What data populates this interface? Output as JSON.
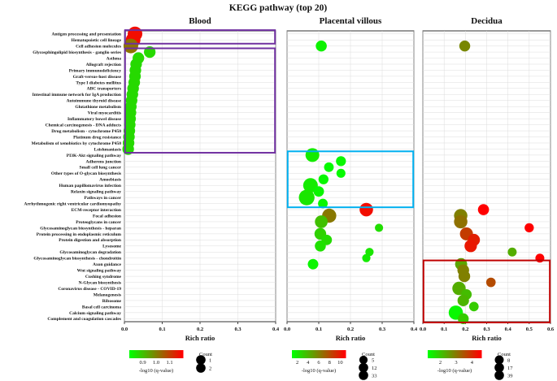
{
  "chart_data": {
    "type": "scatter",
    "title": "KEGG pathway (top 20)",
    "xlabel": "Rich ratio",
    "ylabel": "",
    "terms": [
      "Antigen processing and presentation",
      "Hematopoietic cell lineage",
      "Cell adhesion molecules",
      "Glycosphingolipid biosynthesis - ganglio series",
      "Asthma",
      "Allograft rejection",
      "Primary immunodeficiency",
      "Graft-versus-host disease",
      "Type I diabetes mellitus",
      "ABC transporters",
      "Intestinal immune network for IgA production",
      "Autoimmune thyroid disease",
      "Glutathione metabolism",
      "Viral myocarditis",
      "Inflammatory bowel disease",
      "Chemical carcinogenesis - DNA adducts",
      "Drug metabolism - cytochrome P450",
      "Platinum drug resistance",
      "Metabolism of xenobiotics by cytochrome P450",
      "Leishmaniasis",
      "PI3K-Akt signaling pathway",
      "Adherens junction",
      "Small cell lung cancer",
      "Other types of O-glycan biosynthesis",
      "Amoebiasis",
      "Human papillomavirus infection",
      "Relaxin signaling pathway",
      "Pathways in cancer",
      "Arrhythmogenic right ventricular cardiomyopathy",
      "ECM-receptor interaction",
      "Focal adhesion",
      "Proteoglycans in cancer",
      "Glycosaminoglycan biosynthesis - heparan",
      "Protein processing in endoplasmic reticulum",
      "Protein digestion and absorption",
      "Lysosome",
      "Glycosaminoglycan degradation",
      "Glycosaminoglycan biosynthesis - chondroitin",
      "Axon guidance",
      "Wnt signaling pathway",
      "Cushing syndrome",
      "N-Glycan biosynthesis",
      "Coronavirus disease - COVID-19",
      "Melanogenesis",
      "Ribosome",
      "Basal cell carcinoma",
      "Calcium signaling pathway",
      "Complement and coagulation cascades"
    ],
    "panels": [
      {
        "name": "Blood",
        "xlim": [
          0,
          0.4
        ],
        "xticks": [
          "0.0",
          "0.1",
          "0.2",
          "0.3",
          "0.4"
        ],
        "colorbar": {
          "min": 0.8,
          "max": 1.2,
          "ticks": [
            "0.9",
            "1.0",
            "1.1"
          ],
          "label": "-log10 (q-value)"
        },
        "size_legend": {
          "title": "Count",
          "values": [
            1,
            2
          ],
          "labels": [
            "1",
            "2"
          ]
        },
        "points": [
          {
            "term": "Antigen processing and presentation",
            "x": 0.028,
            "count": 2,
            "q": 1.18
          },
          {
            "term": "Hematopoietic cell lineage",
            "x": 0.023,
            "count": 2,
            "q": 1.18
          },
          {
            "term": "Cell adhesion molecules",
            "x": 0.017,
            "count": 2,
            "q": 1.02
          },
          {
            "term": "Glycosphingolipid biosynthesis - ganglio series",
            "x": 0.067,
            "count": 1,
            "q": 0.86
          },
          {
            "term": "Asthma",
            "x": 0.037,
            "count": 1,
            "q": 0.86
          },
          {
            "term": "Allograft rejection",
            "x": 0.031,
            "count": 1,
            "q": 0.86
          },
          {
            "term": "Primary immunodeficiency",
            "x": 0.029,
            "count": 1,
            "q": 0.86
          },
          {
            "term": "Graft-versus-host disease",
            "x": 0.028,
            "count": 1,
            "q": 0.86
          },
          {
            "term": "Type I diabetes mellitus",
            "x": 0.026,
            "count": 1,
            "q": 0.86
          },
          {
            "term": "ABC transporters",
            "x": 0.023,
            "count": 1,
            "q": 0.86
          },
          {
            "term": "Intestinal immune network for IgA production",
            "x": 0.021,
            "count": 1,
            "q": 0.86
          },
          {
            "term": "Autoimmune thyroid disease",
            "x": 0.019,
            "count": 1,
            "q": 0.86
          },
          {
            "term": "Glutathione metabolism",
            "x": 0.017,
            "count": 1,
            "q": 0.86
          },
          {
            "term": "Viral myocarditis",
            "x": 0.016,
            "count": 1,
            "q": 0.86
          },
          {
            "term": "Inflammatory bowel disease",
            "x": 0.015,
            "count": 1,
            "q": 0.86
          },
          {
            "term": "Chemical carcinogenesis - DNA adducts",
            "x": 0.014,
            "count": 1,
            "q": 0.86
          },
          {
            "term": "Drug metabolism - cytochrome P450",
            "x": 0.013,
            "count": 1,
            "q": 0.86
          },
          {
            "term": "Platinum drug resistance",
            "x": 0.012,
            "count": 1,
            "q": 0.86
          },
          {
            "term": "Metabolism of xenobiotics by cytochrome P450",
            "x": 0.011,
            "count": 1,
            "q": 0.86
          },
          {
            "term": "Leishmaniasis",
            "x": 0.01,
            "count": 1,
            "q": 0.86
          }
        ]
      },
      {
        "name": "Placental villous",
        "xlim": [
          0,
          0.4
        ],
        "xticks": [
          "0.0",
          "0.1",
          "0.2",
          "0.3",
          "0.4"
        ],
        "colorbar": {
          "min": 1,
          "max": 11,
          "ticks": [
            "2",
            "4",
            "6",
            "8",
            "10"
          ],
          "label": "-log10 (q-value)"
        },
        "size_legend": {
          "title": "Count",
          "values": [
            5,
            12,
            33
          ],
          "labels": [
            "5",
            "12",
            "33"
          ]
        },
        "points": [
          {
            "term": "Cell adhesion molecules",
            "x": 0.108,
            "count": 14,
            "q": 1.5
          },
          {
            "term": "PI3K-Akt signaling pathway",
            "x": 0.08,
            "count": 28,
            "q": 1.8
          },
          {
            "term": "Adherens junction",
            "x": 0.17,
            "count": 10,
            "q": 1.3
          },
          {
            "term": "Small cell lung cancer",
            "x": 0.132,
            "count": 9,
            "q": 1.2
          },
          {
            "term": "Other types of O-glycan biosynthesis",
            "x": 0.17,
            "count": 7,
            "q": 1.2
          },
          {
            "term": "Amoebiasis",
            "x": 0.115,
            "count": 10,
            "q": 1.3
          },
          {
            "term": "Human papillomavirus infection",
            "x": 0.074,
            "count": 33,
            "q": 1.8
          },
          {
            "term": "Relaxin signaling pathway",
            "x": 0.1,
            "count": 12,
            "q": 1.4
          },
          {
            "term": "Pathways in cancer",
            "x": 0.062,
            "count": 40,
            "q": 2
          },
          {
            "term": "Arrhythmogenic right ventricular cardiomyopathy",
            "x": 0.113,
            "count": 9,
            "q": 1.3
          },
          {
            "term": "ECM-receptor interaction",
            "x": 0.25,
            "count": 26,
            "q": 10.5
          },
          {
            "term": "Focal adhesion",
            "x": 0.133,
            "count": 30,
            "q": 6.3
          },
          {
            "term": "Proteoglycans in cancer",
            "x": 0.108,
            "count": 22,
            "q": 3.5
          },
          {
            "term": "Glycosaminoglycan biosynthesis - heparan",
            "x": 0.29,
            "count": 5,
            "q": 2.3
          },
          {
            "term": "Protein processing in endoplasmic reticulum",
            "x": 0.105,
            "count": 17,
            "q": 2.8
          },
          {
            "term": "Protein digestion and absorption",
            "x": 0.125,
            "count": 12,
            "q": 2.4
          },
          {
            "term": "Lysosome",
            "x": 0.105,
            "count": 14,
            "q": 2.2
          },
          {
            "term": "Glycosaminoglycan degradation",
            "x": 0.26,
            "count": 5,
            "q": 2
          },
          {
            "term": "Glycosaminoglycan biosynthesis - chondroitin",
            "x": 0.25,
            "count": 5,
            "q": 1.8
          },
          {
            "term": "Axon guidance",
            "x": 0.082,
            "count": 12,
            "q": 1.4
          }
        ]
      },
      {
        "name": "Decidua",
        "xlim": [
          0,
          0.6
        ],
        "xticks": [
          "0.0",
          "0.1",
          "0.2",
          "0.3",
          "0.4",
          "0.5",
          "0.6"
        ],
        "colorbar": {
          "min": 1.2,
          "max": 4.6,
          "ticks": [
            "2",
            "3",
            "4"
          ],
          "label": "-log10 (q-value)"
        },
        "size_legend": {
          "title": "Count",
          "values": [
            8,
            17,
            39
          ],
          "labels": [
            "8",
            "17",
            "39"
          ]
        },
        "points": [
          {
            "term": "Cell adhesion molecules",
            "x": 0.197,
            "count": 16,
            "q": 2.8
          },
          {
            "term": "ECM-receptor interaction",
            "x": 0.285,
            "count": 17,
            "q": 4.6
          },
          {
            "term": "Focal adhesion",
            "x": 0.178,
            "count": 30,
            "q": 2.9
          },
          {
            "term": "Proteoglycans in cancer",
            "x": 0.178,
            "count": 30,
            "q": 3.1
          },
          {
            "term": "Glycosaminoglycan biosynthesis - heparan",
            "x": 0.5,
            "count": 9,
            "q": 4.6
          },
          {
            "term": "Protein processing in endoplasmic reticulum",
            "x": 0.205,
            "count": 28,
            "q": 3.8
          },
          {
            "term": "Protein digestion and absorption",
            "x": 0.24,
            "count": 22,
            "q": 4.2
          },
          {
            "term": "Lysosome",
            "x": 0.225,
            "count": 24,
            "q": 4.3
          },
          {
            "term": "Glycosaminoglycan degradation",
            "x": 0.42,
            "count": 8,
            "q": 2.3
          },
          {
            "term": "Glycosaminoglycan biosynthesis - chondroitin",
            "x": 0.55,
            "count": 8,
            "q": 4.6
          },
          {
            "term": "Axon guidance",
            "x": 0.18,
            "count": 22,
            "q": 2.4
          },
          {
            "term": "Wnt signaling pathway",
            "x": 0.19,
            "count": 20,
            "q": 2.9
          },
          {
            "term": "Cushing syndrome",
            "x": 0.195,
            "count": 20,
            "q": 2.9
          },
          {
            "term": "N-Glycan biosynthesis",
            "x": 0.32,
            "count": 10,
            "q": 3.6
          },
          {
            "term": "Coronavirus disease - COVID-19",
            "x": 0.17,
            "count": 30,
            "q": 2.3
          },
          {
            "term": "Melanogenesis",
            "x": 0.205,
            "count": 14,
            "q": 2.1
          },
          {
            "term": "Ribosome",
            "x": 0.19,
            "count": 19,
            "q": 2.2
          },
          {
            "term": "Basal cell carcinoma",
            "x": 0.24,
            "count": 10,
            "q": 1.9
          },
          {
            "term": "Calcium signaling pathway",
            "x": 0.155,
            "count": 36,
            "q": 1.3
          },
          {
            "term": "Complement and coagulation cascades",
            "x": 0.19,
            "count": 16,
            "q": 1.9
          }
        ]
      }
    ],
    "highlight_boxes": [
      {
        "panel": "Blood",
        "color": "#7030a0",
        "from_term": "Antigen processing and presentation",
        "to_term": "Hematopoietic cell lineage"
      },
      {
        "panel": "Blood",
        "color": "#7030a0",
        "from_term": "Glycosphingolipid biosynthesis - ganglio series",
        "to_term": "Leishmaniasis"
      },
      {
        "panel": "Placental villous",
        "color": "#00b0f0",
        "from_term": "PI3K-Akt signaling pathway",
        "to_term": "Arrhythmogenic right ventricular cardiomyopathy"
      },
      {
        "panel": "Decidua",
        "color": "#c00000",
        "from_term": "Axon guidance",
        "to_term": "Complement and coagulation cascades"
      }
    ],
    "color_scale": {
      "low": "#00ff00",
      "high": "#ff0000"
    }
  }
}
